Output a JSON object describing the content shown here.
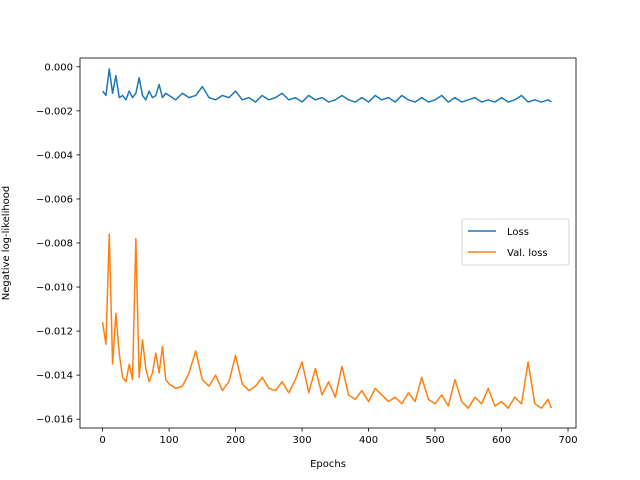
{
  "chart_data": {
    "type": "line",
    "xlabel": "Epochs",
    "ylabel": "Negative log-likelihood",
    "xlim": [
      -34,
      712
    ],
    "ylim": [
      -0.0164,
      0.0004
    ],
    "xticks": [
      0,
      100,
      200,
      300,
      400,
      500,
      600,
      700
    ],
    "xtick_labels": [
      "0",
      "100",
      "200",
      "300",
      "400",
      "500",
      "600",
      "700"
    ],
    "yticks": [
      0.0,
      -0.002,
      -0.004,
      -0.006,
      -0.008,
      -0.01,
      -0.012,
      -0.014,
      -0.016
    ],
    "ytick_labels": [
      "0.000",
      "−0.002",
      "−0.004",
      "−0.006",
      "−0.008",
      "−0.010",
      "−0.012",
      "−0.014",
      "−0.016"
    ],
    "grid": false,
    "legend_position": "center-right",
    "x": [
      0,
      5,
      10,
      15,
      20,
      25,
      30,
      35,
      40,
      45,
      50,
      55,
      60,
      65,
      70,
      75,
      80,
      85,
      90,
      95,
      100,
      110,
      120,
      130,
      140,
      150,
      160,
      170,
      180,
      190,
      200,
      210,
      220,
      230,
      240,
      250,
      260,
      270,
      280,
      290,
      300,
      310,
      320,
      330,
      340,
      350,
      360,
      370,
      380,
      390,
      400,
      410,
      420,
      430,
      440,
      450,
      460,
      470,
      480,
      490,
      500,
      510,
      520,
      530,
      540,
      550,
      560,
      570,
      580,
      590,
      600,
      610,
      620,
      630,
      640,
      650,
      660,
      670,
      675
    ],
    "series": [
      {
        "name": "Loss",
        "color": "#1f77b4",
        "values": [
          -0.0011,
          -0.0013,
          -0.0001,
          -0.0012,
          -0.0004,
          -0.0014,
          -0.0013,
          -0.0015,
          -0.0011,
          -0.0014,
          -0.0012,
          -0.0005,
          -0.0013,
          -0.0015,
          -0.0011,
          -0.0014,
          -0.0013,
          -0.0008,
          -0.0014,
          -0.0012,
          -0.0013,
          -0.0015,
          -0.0012,
          -0.0014,
          -0.0013,
          -0.0009,
          -0.0014,
          -0.0015,
          -0.0013,
          -0.0014,
          -0.0011,
          -0.0015,
          -0.0014,
          -0.0016,
          -0.0013,
          -0.0015,
          -0.0014,
          -0.0012,
          -0.0015,
          -0.0014,
          -0.0016,
          -0.0013,
          -0.0015,
          -0.0014,
          -0.0016,
          -0.0015,
          -0.0013,
          -0.0015,
          -0.0016,
          -0.0014,
          -0.0016,
          -0.0013,
          -0.0015,
          -0.0014,
          -0.0016,
          -0.0013,
          -0.0015,
          -0.0016,
          -0.0014,
          -0.0016,
          -0.0015,
          -0.0013,
          -0.0016,
          -0.0014,
          -0.0016,
          -0.0015,
          -0.0014,
          -0.0016,
          -0.0015,
          -0.0016,
          -0.0014,
          -0.0016,
          -0.0015,
          -0.0013,
          -0.0016,
          -0.0015,
          -0.0016,
          -0.0015,
          -0.0016
        ]
      },
      {
        "name": "Val. loss",
        "color": "#ff7f0e",
        "values": [
          -0.0116,
          -0.0126,
          -0.0076,
          -0.0135,
          -0.0112,
          -0.013,
          -0.0141,
          -0.0143,
          -0.0135,
          -0.0142,
          -0.0078,
          -0.0141,
          -0.0124,
          -0.0137,
          -0.0143,
          -0.0139,
          -0.013,
          -0.0139,
          -0.0127,
          -0.0142,
          -0.0144,
          -0.0146,
          -0.0145,
          -0.0139,
          -0.0129,
          -0.0142,
          -0.0145,
          -0.014,
          -0.0147,
          -0.0143,
          -0.0131,
          -0.0144,
          -0.0147,
          -0.0145,
          -0.0141,
          -0.0146,
          -0.0147,
          -0.0143,
          -0.0148,
          -0.0142,
          -0.0134,
          -0.0148,
          -0.0137,
          -0.0149,
          -0.0143,
          -0.015,
          -0.0136,
          -0.0149,
          -0.0151,
          -0.0147,
          -0.0152,
          -0.0146,
          -0.0149,
          -0.0152,
          -0.015,
          -0.0153,
          -0.0148,
          -0.0152,
          -0.0141,
          -0.0151,
          -0.0153,
          -0.0149,
          -0.0154,
          -0.0142,
          -0.0152,
          -0.0155,
          -0.015,
          -0.0153,
          -0.0146,
          -0.0154,
          -0.0152,
          -0.0155,
          -0.015,
          -0.0153,
          -0.0134,
          -0.0153,
          -0.0155,
          -0.0151,
          -0.0155
        ]
      }
    ]
  }
}
